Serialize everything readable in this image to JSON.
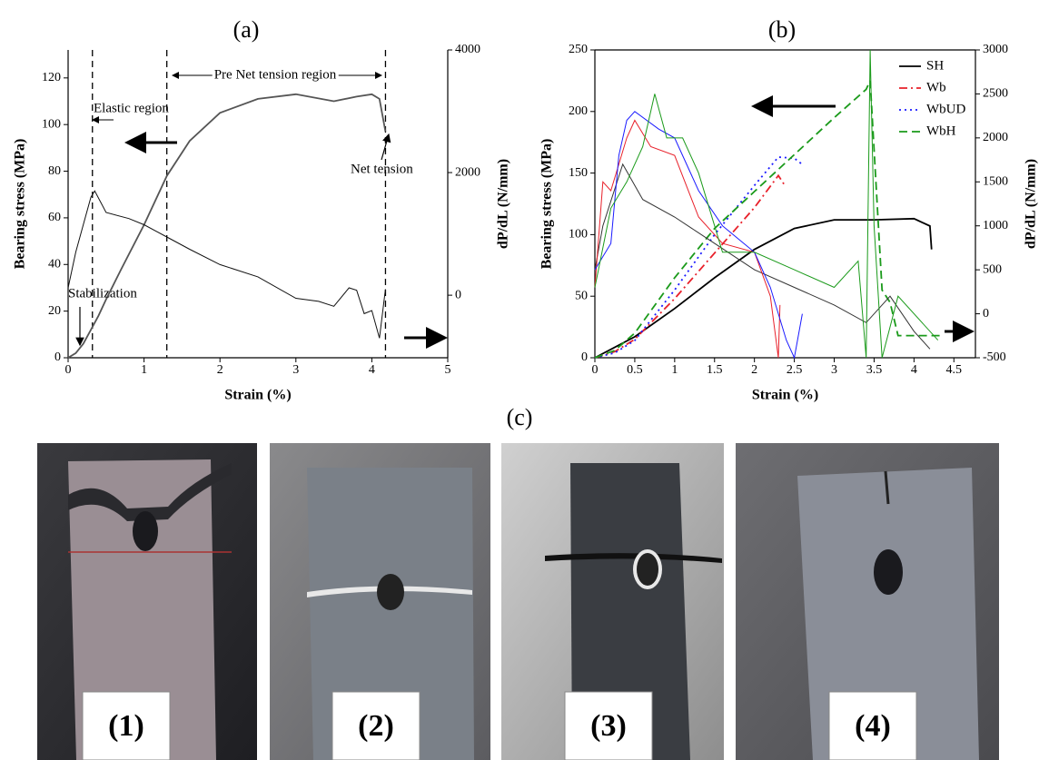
{
  "chart_data": [
    {
      "type": "line",
      "title": "(a)",
      "xlabel": "Strain (%)",
      "ylabel": "Bearing stress (MPa)",
      "y2label": "dP/dL (N/mm)",
      "xlim": [
        0,
        5
      ],
      "xticks": [
        0,
        1,
        2,
        3,
        4,
        5
      ],
      "ylim": [
        0,
        132
      ],
      "yticks": [
        0,
        20,
        40,
        60,
        80,
        100,
        120
      ],
      "y2lim": [
        -1020,
        4000
      ],
      "y2ticks": [
        0,
        2000,
        4000
      ],
      "grid": false,
      "vlines": [
        0.32,
        1.3,
        4.18
      ],
      "annotations": [
        "Elastic region",
        "Pre Net tension region",
        "Net tension",
        "Stabilization"
      ],
      "series": [
        {
          "color": "#555555",
          "linestyle": "solid",
          "x": [
            0,
            0.1,
            0.2,
            0.3,
            0.4,
            0.5,
            0.7,
            1,
            1.3,
            1.6,
            2,
            2.5,
            3,
            3.5,
            3.8,
            4,
            4.1,
            4.18
          ],
          "values": [
            0,
            2,
            6,
            12,
            18,
            25,
            38,
            57,
            78,
            93,
            105,
            111,
            113,
            110,
            112,
            113,
            111,
            97
          ]
        },
        {
          "color": "#111111",
          "linestyle": "solid",
          "axis": "y2",
          "x": [
            0,
            0.1,
            0.2,
            0.3,
            0.35,
            0.5,
            0.8,
            1,
            1.3,
            1.6,
            2,
            2.5,
            3,
            3.3,
            3.5,
            3.7,
            3.8,
            3.9,
            4,
            4.1,
            4.18
          ],
          "values": [
            120,
            700,
            1150,
            1600,
            1700,
            1350,
            1250,
            1150,
            950,
            750,
            500,
            300,
            -50,
            -100,
            -180,
            120,
            80,
            -300,
            -250,
            -700,
            100
          ]
        }
      ]
    },
    {
      "type": "line",
      "title": "(b)",
      "xlabel": "Strain (%)",
      "ylabel": "Bearing stress (MPa)",
      "y2label": "dP/dL (N/mm)",
      "xlim": [
        0,
        4.77
      ],
      "xticks": [
        0,
        0.5,
        1,
        1.5,
        2,
        2.5,
        3,
        3.5,
        4,
        4.5
      ],
      "ylim": [
        0,
        250
      ],
      "yticks": [
        0,
        50,
        100,
        150,
        200,
        250
      ],
      "y2lim": [
        -500,
        3000
      ],
      "y2ticks": [
        -500,
        0,
        500,
        1000,
        1500,
        2000,
        2500,
        3000
      ],
      "grid": false,
      "legend": "upper right",
      "series": [
        {
          "name": "SH",
          "color": "#000000",
          "linestyle": "solid",
          "x": [
            0,
            0.5,
            1,
            1.5,
            2,
            2.5,
            3,
            3.5,
            4,
            4.2,
            4.22
          ],
          "values": [
            0,
            17,
            40,
            65,
            88,
            105,
            112,
            112,
            113,
            107,
            88
          ]
        },
        {
          "name": "Wb",
          "color": "#e8202a",
          "linestyle": "dash-dot",
          "x": [
            0,
            0.25,
            0.5,
            1,
            1.5,
            2,
            2.3,
            2.38
          ],
          "values": [
            0,
            5,
            15,
            48,
            85,
            122,
            148,
            140
          ]
        },
        {
          "name": "WbUD",
          "color": "#1a1aff",
          "linestyle": "dotted",
          "x": [
            0,
            0.25,
            0.5,
            1,
            1.5,
            2,
            2.3,
            2.5,
            2.6
          ],
          "values": [
            0,
            4,
            14,
            55,
            100,
            140,
            163,
            162,
            157
          ]
        },
        {
          "name": "WbH",
          "color": "#1a9a1a",
          "linestyle": "dashed",
          "x": [
            0,
            0.25,
            0.5,
            1,
            1.5,
            2,
            2.5,
            3,
            3.4,
            3.45,
            3.6,
            3.7,
            3.8,
            4.35
          ],
          "values": [
            0,
            6,
            20,
            65,
            105,
            135,
            165,
            195,
            218,
            225,
            55,
            45,
            18,
            18
          ]
        },
        {
          "color": "#333333",
          "linestyle": "solid",
          "axis": "y2",
          "x": [
            0,
            0.1,
            0.35,
            0.6,
            1,
            1.5,
            2,
            2.5,
            3,
            3.4,
            3.7,
            4,
            4.2
          ],
          "values": [
            500,
            1000,
            1700,
            1300,
            1100,
            800,
            500,
            300,
            100,
            -100,
            200,
            -200,
            -400
          ]
        },
        {
          "color": "#e8202a",
          "linestyle": "solid",
          "axis": "y2",
          "x": [
            0,
            0.1,
            0.2,
            0.4,
            0.5,
            0.7,
            1,
            1.3,
            1.6,
            2,
            2.2,
            2.3,
            2.32
          ],
          "values": [
            300,
            1500,
            1400,
            2000,
            2200,
            1900,
            1800,
            1100,
            800,
            700,
            200,
            -500,
            100
          ]
        },
        {
          "color": "#1a1aff",
          "linestyle": "solid",
          "axis": "y2",
          "x": [
            0,
            0.2,
            0.3,
            0.4,
            0.5,
            0.8,
            1,
            1.3,
            1.6,
            2,
            2.2,
            2.4,
            2.5,
            2.6
          ],
          "values": [
            500,
            800,
            1800,
            2200,
            2300,
            2100,
            2000,
            1400,
            1000,
            700,
            300,
            -300,
            -500,
            0
          ]
        },
        {
          "color": "#1a9a1a",
          "linestyle": "solid",
          "axis": "y2",
          "x": [
            0,
            0.2,
            0.4,
            0.6,
            0.75,
            0.9,
            1.1,
            1.3,
            1.5,
            1.6,
            2,
            2.5,
            3,
            3.3,
            3.4,
            3.45,
            3.5,
            3.6,
            3.8,
            4.3
          ],
          "values": [
            300,
            1200,
            1500,
            1900,
            2500,
            2000,
            2000,
            1600,
            1000,
            700,
            700,
            500,
            300,
            600,
            -500,
            3000,
            1000,
            -500,
            200,
            -300
          ]
        }
      ]
    }
  ],
  "photos": {
    "title": "(c)",
    "panels": [
      "(1)",
      "(2)",
      "(3)",
      "(4)"
    ]
  }
}
